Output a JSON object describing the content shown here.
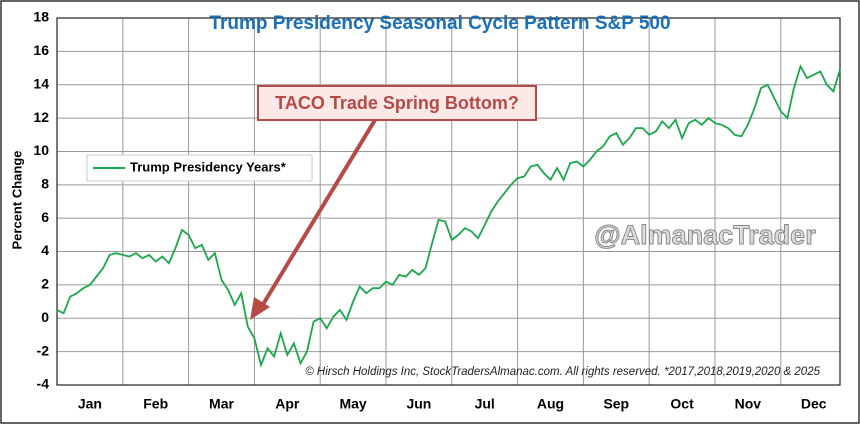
{
  "chart_data": {
    "type": "line",
    "title": "Trump Presidency Seasonal Cycle Pattern S&P 500",
    "ylabel": "Percent Change",
    "annotation": "TACO Trade Spring Bottom?",
    "watermark": "@AlmanacTrader",
    "credit": "© Hirsch Holdings Inc, StockTradersAlmanac.com. All rights reserved. *2017,2018,2019,2020 & 2025",
    "categories": [
      null,
      null,
      null,
      null,
      null,
      "Jan",
      null,
      null,
      null,
      null,
      null,
      null,
      null,
      null,
      null,
      "Feb",
      null,
      null,
      null,
      null,
      null,
      null,
      null,
      null,
      null,
      "Mar",
      null,
      null,
      null,
      null,
      null,
      null,
      null,
      null,
      null,
      "Apr",
      null,
      null,
      null,
      null,
      null,
      null,
      null,
      null,
      null,
      "May",
      null,
      null,
      null,
      null,
      null,
      null,
      null,
      null,
      null,
      "Jun",
      null,
      null,
      null,
      null,
      null,
      null,
      null,
      null,
      null,
      "Jul",
      null,
      null,
      null,
      null,
      null,
      null,
      null,
      null,
      null,
      "Aug",
      null,
      null,
      null,
      null,
      null,
      null,
      null,
      null,
      null,
      "Sep",
      null,
      null,
      null,
      null,
      null,
      null,
      null,
      null,
      null,
      "Oct",
      null,
      null,
      null,
      null,
      null,
      null,
      null,
      null,
      null,
      "Nov",
      null,
      null,
      null,
      null,
      null,
      null,
      null,
      null,
      null,
      "Dec",
      null,
      null,
      null,
      null
    ],
    "series": [
      {
        "name": "Trump Presidency Years*",
        "color": "#1aa84a",
        "values": [
          0.5,
          0.3,
          1.3,
          1.5,
          1.8,
          2.0,
          2.5,
          3.0,
          3.8,
          3.9,
          3.8,
          3.7,
          3.9,
          3.6,
          3.8,
          3.4,
          3.7,
          3.3,
          4.2,
          5.3,
          5.0,
          4.2,
          4.4,
          3.5,
          3.9,
          2.3,
          1.7,
          0.8,
          1.5,
          -0.5,
          -1.2,
          -2.8,
          -1.8,
          -2.3,
          -0.9,
          -2.2,
          -1.5,
          -2.7,
          -2.0,
          -0.2,
          0.0,
          -0.6,
          0.1,
          0.5,
          -0.1,
          1.0,
          1.9,
          1.5,
          1.8,
          1.8,
          2.2,
          2.0,
          2.6,
          2.5,
          2.9,
          2.6,
          3.0,
          4.5,
          5.9,
          5.8,
          4.7,
          5.0,
          5.4,
          5.2,
          4.8,
          5.6,
          6.4,
          7.0,
          7.5,
          8.0,
          8.4,
          8.5,
          9.1,
          9.2,
          8.7,
          8.3,
          9.0,
          8.3,
          9.3,
          9.4,
          9.1,
          9.5,
          10.0,
          10.3,
          10.9,
          11.1,
          10.4,
          10.8,
          11.4,
          11.4,
          11.0,
          11.2,
          11.8,
          11.4,
          11.9,
          10.8,
          11.7,
          11.9,
          11.6,
          12.0,
          11.7,
          11.6,
          11.4,
          11.0,
          10.9,
          11.6,
          12.6,
          13.8,
          14.0,
          13.2,
          12.4,
          12.0,
          13.8,
          15.1,
          14.4,
          14.6,
          14.8,
          14.0,
          13.6,
          14.9
        ]
      }
    ],
    "ylim": [
      -4,
      18
    ],
    "yticks": [
      -4,
      -2,
      0,
      2,
      4,
      6,
      8,
      10,
      12,
      14,
      16,
      18
    ],
    "grid": true,
    "legend": "upper left"
  }
}
